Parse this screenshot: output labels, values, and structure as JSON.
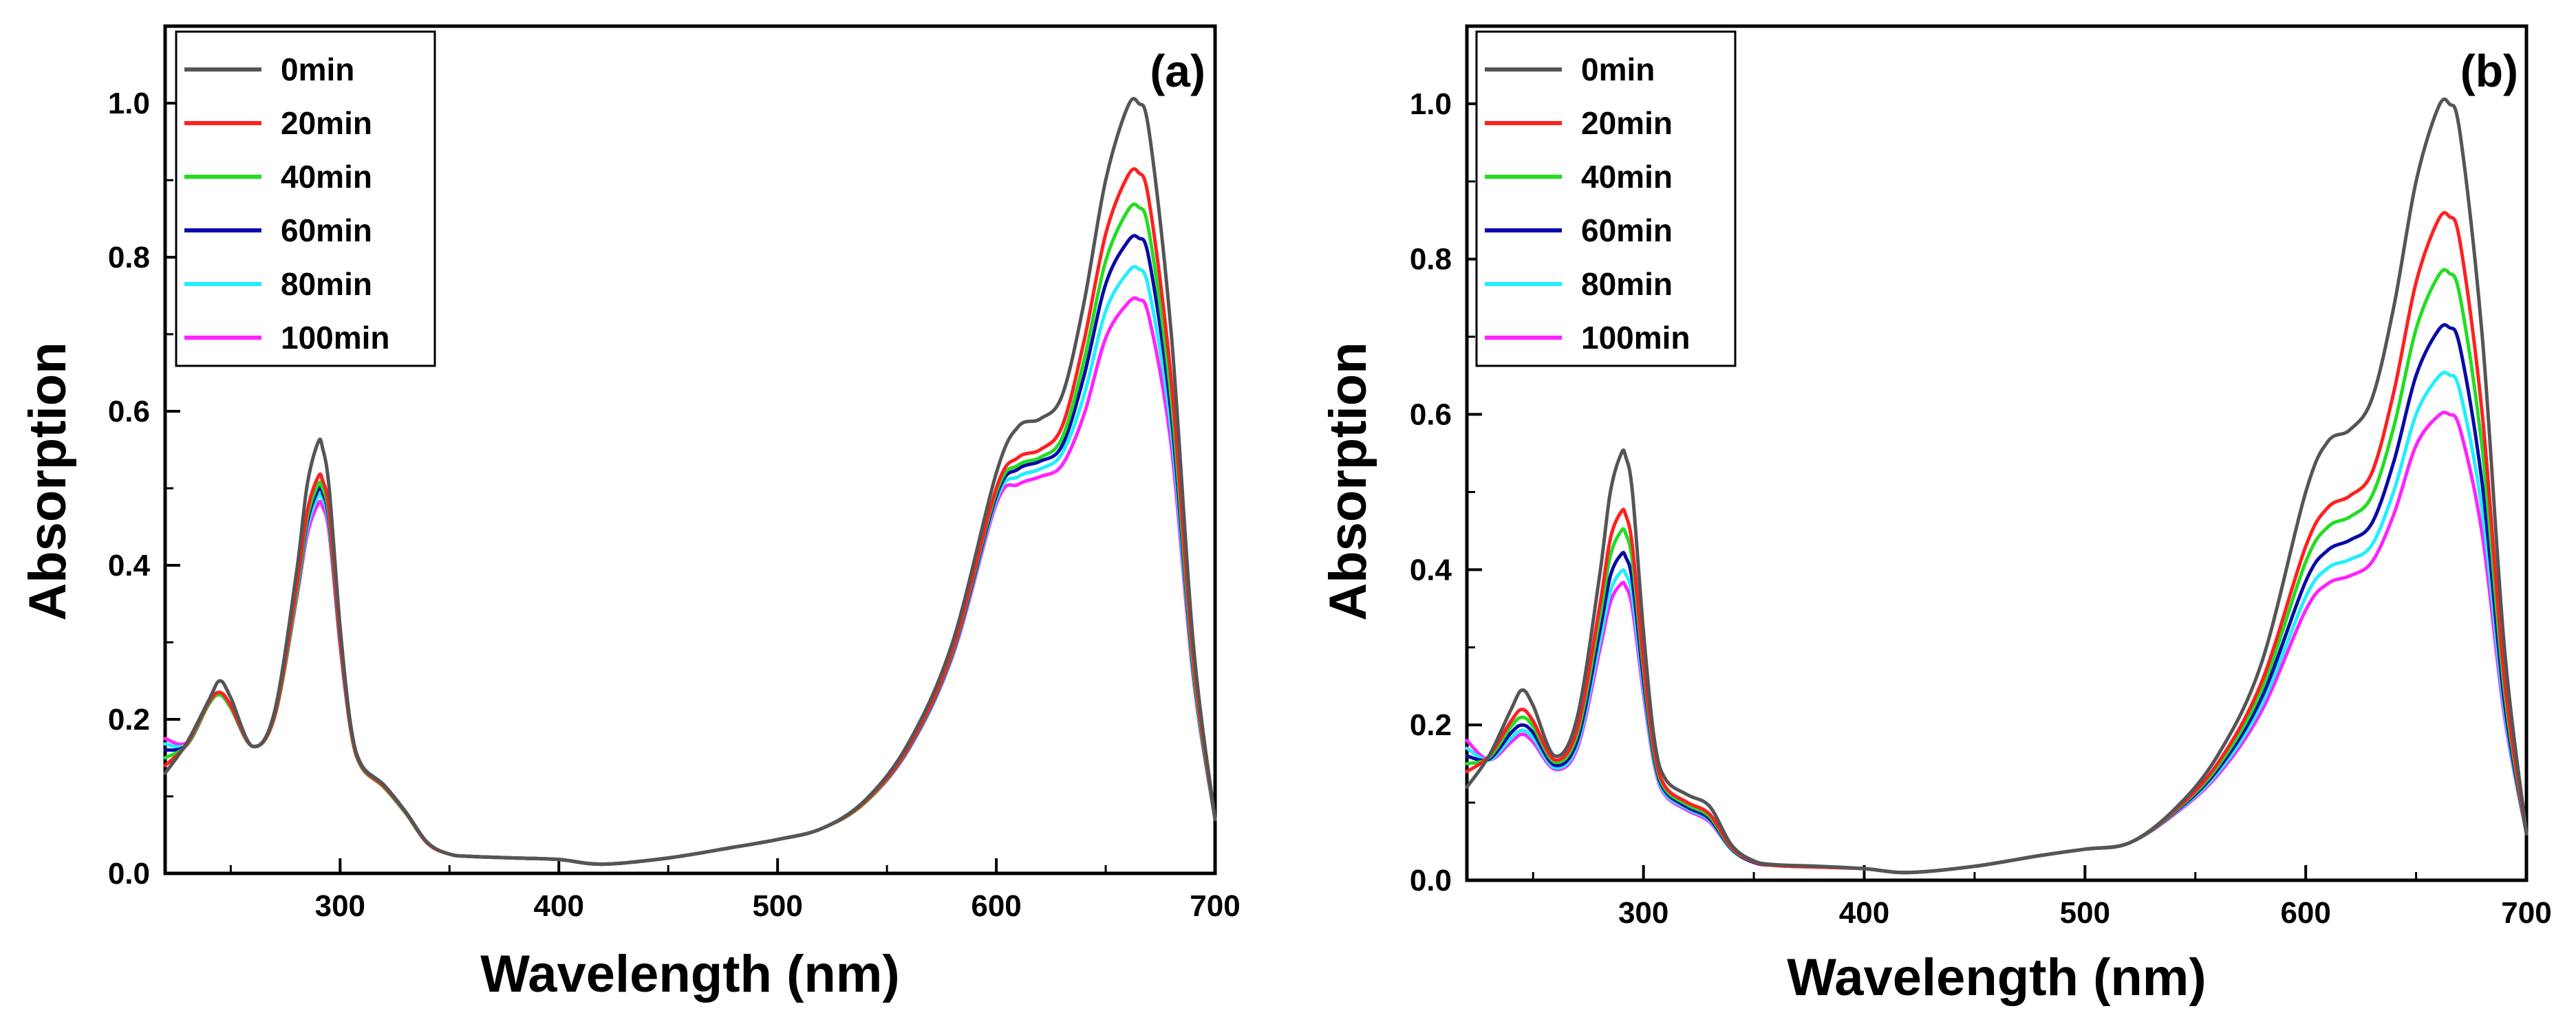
{
  "chart_data": [
    {
      "type": "line",
      "panel_label": "(a)",
      "title": "",
      "xlabel": "Wavelength (nm)",
      "ylabel": "Absorption",
      "xlim": [
        220,
        700
      ],
      "ylim": [
        0.0,
        1.1
      ],
      "xticks": [
        300,
        400,
        500,
        600,
        700
      ],
      "yticks": [
        0.0,
        0.2,
        0.4,
        0.6,
        0.8,
        1.0
      ],
      "xtick_labels": [
        "300",
        "400",
        "500",
        "600",
        "700"
      ],
      "ytick_labels": [
        "0.0",
        "0.2",
        "0.4",
        "0.6",
        "0.8",
        "1.0"
      ],
      "grid": false,
      "legend_position": "top-left",
      "x": [
        220,
        230,
        240,
        245,
        250,
        260,
        270,
        280,
        285,
        290,
        292,
        295,
        300,
        305,
        310,
        320,
        330,
        340,
        350,
        360,
        380,
        400,
        420,
        450,
        480,
        500,
        520,
        540,
        560,
        580,
        600,
        610,
        620,
        630,
        640,
        650,
        660,
        665,
        670,
        680,
        690,
        700
      ],
      "series": [
        {
          "name": "0min",
          "color": "#555555",
          "values": [
            0.13,
            0.17,
            0.225,
            0.25,
            0.228,
            0.165,
            0.21,
            0.39,
            0.505,
            0.56,
            0.552,
            0.5,
            0.32,
            0.19,
            0.14,
            0.115,
            0.08,
            0.04,
            0.025,
            0.022,
            0.02,
            0.018,
            0.012,
            0.02,
            0.034,
            0.044,
            0.058,
            0.095,
            0.17,
            0.3,
            0.52,
            0.58,
            0.59,
            0.62,
            0.74,
            0.9,
            0.995,
            1.0,
            0.96,
            0.7,
            0.3,
            0.07
          ]
        },
        {
          "name": "20min",
          "color": "#ff2020",
          "values": [
            0.14,
            0.168,
            0.222,
            0.235,
            0.218,
            0.165,
            0.205,
            0.37,
            0.47,
            0.515,
            0.51,
            0.47,
            0.305,
            0.185,
            0.138,
            0.113,
            0.079,
            0.039,
            0.025,
            0.022,
            0.02,
            0.018,
            0.012,
            0.02,
            0.034,
            0.044,
            0.058,
            0.093,
            0.165,
            0.29,
            0.5,
            0.54,
            0.55,
            0.58,
            0.69,
            0.83,
            0.905,
            0.91,
            0.87,
            0.64,
            0.28,
            0.07
          ]
        },
        {
          "name": "40min",
          "color": "#22dd22",
          "values": [
            0.15,
            0.167,
            0.22,
            0.232,
            0.215,
            0.165,
            0.203,
            0.362,
            0.462,
            0.505,
            0.5,
            0.462,
            0.302,
            0.184,
            0.137,
            0.112,
            0.078,
            0.039,
            0.025,
            0.022,
            0.02,
            0.018,
            0.012,
            0.02,
            0.034,
            0.044,
            0.058,
            0.092,
            0.164,
            0.288,
            0.495,
            0.53,
            0.54,
            0.565,
            0.665,
            0.795,
            0.86,
            0.865,
            0.83,
            0.615,
            0.27,
            0.07
          ]
        },
        {
          "name": "60min",
          "color": "#0a0aa8",
          "values": [
            0.16,
            0.167,
            0.22,
            0.232,
            0.215,
            0.165,
            0.203,
            0.36,
            0.456,
            0.498,
            0.494,
            0.456,
            0.3,
            0.184,
            0.137,
            0.112,
            0.078,
            0.039,
            0.025,
            0.022,
            0.02,
            0.018,
            0.012,
            0.02,
            0.034,
            0.044,
            0.058,
            0.092,
            0.163,
            0.286,
            0.49,
            0.525,
            0.535,
            0.555,
            0.645,
            0.765,
            0.82,
            0.825,
            0.795,
            0.595,
            0.265,
            0.07
          ]
        },
        {
          "name": "80min",
          "color": "#22eeff",
          "values": [
            0.168,
            0.168,
            0.22,
            0.232,
            0.215,
            0.165,
            0.203,
            0.358,
            0.448,
            0.49,
            0.486,
            0.45,
            0.298,
            0.184,
            0.137,
            0.112,
            0.078,
            0.039,
            0.025,
            0.022,
            0.02,
            0.018,
            0.012,
            0.02,
            0.034,
            0.044,
            0.058,
            0.092,
            0.162,
            0.284,
            0.485,
            0.515,
            0.525,
            0.545,
            0.62,
            0.73,
            0.78,
            0.785,
            0.755,
            0.575,
            0.26,
            0.07
          ]
        },
        {
          "name": "100min",
          "color": "#ff22ff",
          "values": [
            0.175,
            0.17,
            0.22,
            0.232,
            0.215,
            0.165,
            0.203,
            0.355,
            0.44,
            0.48,
            0.476,
            0.442,
            0.296,
            0.184,
            0.137,
            0.112,
            0.078,
            0.039,
            0.025,
            0.022,
            0.02,
            0.018,
            0.012,
            0.02,
            0.034,
            0.044,
            0.058,
            0.092,
            0.161,
            0.282,
            0.48,
            0.505,
            0.515,
            0.53,
            0.595,
            0.695,
            0.74,
            0.745,
            0.72,
            0.555,
            0.255,
            0.07
          ]
        }
      ]
    },
    {
      "type": "line",
      "panel_label": "(b)",
      "title": "",
      "xlabel": "Wavelength (nm)",
      "ylabel": "Absorption",
      "xlim": [
        220,
        700
      ],
      "ylim": [
        0.0,
        1.1
      ],
      "xticks": [
        300,
        400,
        500,
        600,
        700
      ],
      "yticks": [
        0.0,
        0.2,
        0.4,
        0.6,
        0.8,
        1.0
      ],
      "xtick_labels": [
        "300",
        "400",
        "500",
        "600",
        "700"
      ],
      "ytick_labels": [
        "0.0",
        "0.2",
        "0.4",
        "0.6",
        "0.8",
        "1.0"
      ],
      "grid": false,
      "legend_position": "top-left",
      "x": [
        220,
        230,
        240,
        245,
        250,
        260,
        270,
        280,
        285,
        290,
        292,
        295,
        300,
        305,
        310,
        320,
        330,
        340,
        350,
        360,
        380,
        400,
        420,
        450,
        480,
        500,
        520,
        540,
        560,
        580,
        600,
        610,
        620,
        630,
        640,
        650,
        660,
        665,
        670,
        680,
        690,
        700
      ],
      "series": [
        {
          "name": "0min",
          "color": "#555555",
          "values": [
            0.12,
            0.16,
            0.22,
            0.245,
            0.225,
            0.16,
            0.21,
            0.39,
            0.5,
            0.55,
            0.545,
            0.5,
            0.32,
            0.18,
            0.13,
            0.11,
            0.095,
            0.045,
            0.025,
            0.02,
            0.018,
            0.015,
            0.01,
            0.018,
            0.032,
            0.04,
            0.048,
            0.09,
            0.16,
            0.28,
            0.5,
            0.565,
            0.58,
            0.62,
            0.74,
            0.9,
            0.995,
            1.0,
            0.96,
            0.7,
            0.3,
            0.06
          ]
        },
        {
          "name": "20min",
          "color": "#ff2020",
          "values": [
            0.14,
            0.16,
            0.205,
            0.22,
            0.205,
            0.155,
            0.195,
            0.35,
            0.44,
            0.475,
            0.47,
            0.43,
            0.28,
            0.165,
            0.12,
            0.1,
            0.085,
            0.042,
            0.024,
            0.019,
            0.017,
            0.015,
            0.01,
            0.018,
            0.032,
            0.04,
            0.048,
            0.088,
            0.15,
            0.255,
            0.43,
            0.48,
            0.495,
            0.525,
            0.63,
            0.77,
            0.85,
            0.855,
            0.82,
            0.6,
            0.26,
            0.06
          ]
        },
        {
          "name": "40min",
          "color": "#22dd22",
          "values": [
            0.15,
            0.158,
            0.198,
            0.21,
            0.198,
            0.152,
            0.188,
            0.335,
            0.418,
            0.45,
            0.446,
            0.41,
            0.27,
            0.16,
            0.117,
            0.097,
            0.082,
            0.041,
            0.024,
            0.019,
            0.017,
            0.015,
            0.01,
            0.018,
            0.032,
            0.04,
            0.048,
            0.087,
            0.146,
            0.245,
            0.41,
            0.455,
            0.468,
            0.495,
            0.585,
            0.71,
            0.778,
            0.782,
            0.75,
            0.555,
            0.245,
            0.06
          ]
        },
        {
          "name": "60min",
          "color": "#0a0aa8",
          "values": [
            0.16,
            0.156,
            0.19,
            0.2,
            0.19,
            0.148,
            0.18,
            0.318,
            0.392,
            0.42,
            0.416,
            0.385,
            0.258,
            0.155,
            0.114,
            0.094,
            0.079,
            0.04,
            0.023,
            0.019,
            0.017,
            0.015,
            0.01,
            0.018,
            0.032,
            0.04,
            0.048,
            0.086,
            0.142,
            0.235,
            0.385,
            0.425,
            0.438,
            0.46,
            0.54,
            0.65,
            0.708,
            0.712,
            0.685,
            0.51,
            0.23,
            0.06
          ]
        },
        {
          "name": "80min",
          "color": "#22eeff",
          "values": [
            0.17,
            0.155,
            0.183,
            0.193,
            0.183,
            0.145,
            0.174,
            0.304,
            0.372,
            0.398,
            0.394,
            0.365,
            0.248,
            0.15,
            0.111,
            0.092,
            0.077,
            0.039,
            0.023,
            0.019,
            0.017,
            0.015,
            0.01,
            0.018,
            0.032,
            0.04,
            0.048,
            0.085,
            0.138,
            0.226,
            0.365,
            0.402,
            0.413,
            0.432,
            0.502,
            0.6,
            0.648,
            0.651,
            0.628,
            0.475,
            0.22,
            0.06
          ]
        },
        {
          "name": "100min",
          "color": "#ff22ff",
          "values": [
            0.18,
            0.155,
            0.178,
            0.188,
            0.178,
            0.143,
            0.17,
            0.294,
            0.358,
            0.382,
            0.378,
            0.35,
            0.24,
            0.147,
            0.109,
            0.09,
            0.075,
            0.039,
            0.023,
            0.019,
            0.017,
            0.015,
            0.01,
            0.018,
            0.032,
            0.04,
            0.048,
            0.084,
            0.135,
            0.218,
            0.348,
            0.382,
            0.392,
            0.41,
            0.472,
            0.56,
            0.598,
            0.6,
            0.58,
            0.445,
            0.212,
            0.06
          ]
        }
      ]
    }
  ]
}
